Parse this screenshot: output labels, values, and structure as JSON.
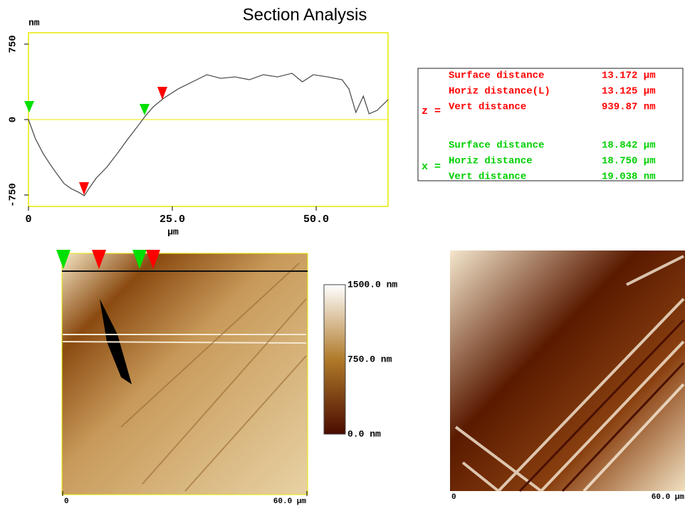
{
  "chart_data": {
    "type": "line",
    "title": "Section Analysis",
    "y_label": "nm",
    "x_label": "µm",
    "x": [
      0,
      1.2,
      2.5,
      3.7,
      5,
      6.2,
      7.4,
      8.7,
      9.7,
      10.5,
      11.8,
      13.6,
      15.5,
      17.3,
      19.2,
      20.4,
      21.7,
      23.5,
      26,
      28.5,
      31,
      33.4,
      35.9,
      38.4,
      40.8,
      43.3,
      45.8,
      47.6,
      49.5,
      52,
      54.5,
      55.7,
      56.9,
      58.2,
      59.2,
      60.6,
      62.5
    ],
    "values": [
      0,
      -190,
      -333,
      -440,
      -545,
      -637,
      -686,
      -722,
      -757,
      -686,
      -580,
      -474,
      -333,
      -191,
      -50,
      42,
      127,
      212,
      304,
      375,
      446,
      410,
      424,
      396,
      446,
      424,
      460,
      375,
      446,
      424,
      396,
      304,
      71,
      233,
      57,
      92,
      198
    ],
    "color": "#444444",
    "frame_color": "#e8e800",
    "xlim": [
      0,
      62.5
    ],
    "ylim": [
      -863,
      863
    ],
    "xticks": [
      0,
      {
        "value": 25,
        "label": "25.0"
      },
      {
        "value": 50,
        "label": "50.0"
      }
    ],
    "yticks": [
      -750,
      0,
      750
    ]
  },
  "section_table": {
    "groups": [
      {
        "symbol": "z =",
        "color": "#ff0000",
        "rows": [
          [
            "Surface distance",
            "13.172 µm"
          ],
          [
            "Horiz distance(L)",
            "13.125 µm"
          ],
          [
            "Vert distance",
            "939.87 nm"
          ]
        ]
      },
      {
        "symbol": "x =",
        "color": "#00d000",
        "rows": [
          [
            "Surface distance",
            "18.842 µm"
          ],
          [
            "Horiz distance",
            "18.750 µm"
          ],
          [
            "Vert distance",
            "19.038 nm"
          ]
        ]
      }
    ]
  },
  "colorbar": {
    "labels": [
      "1500.0 nm",
      "750.0 nm",
      "0.0 nm"
    ]
  },
  "images": [
    {
      "x_start": "0",
      "x_end": "60.0 µm"
    },
    {
      "x_start": "0",
      "x_end": "60.0 µm"
    }
  ]
}
